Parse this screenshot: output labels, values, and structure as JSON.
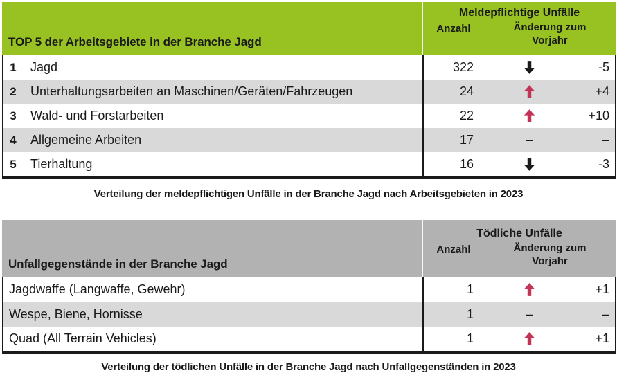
{
  "colors": {
    "header_green": "#98c222",
    "header_gray": "#b2b2b2",
    "row_alt_gray": "#d9d9d9",
    "trend_up_red": "#c23354",
    "trend_down_black": "#1a1a1a",
    "ink": "#1a1a1a"
  },
  "glyphs": {
    "no_change_dash": "–"
  },
  "table1": {
    "title": "TOP 5 der Arbeitsgebiete in der Branche Jagd",
    "group_header": "Meldepflichtige Unfälle",
    "col_anzahl": "Anzahl",
    "col_change": "Änderung zum Vorjahr",
    "rows": [
      {
        "rank": "1",
        "label": "Jagd",
        "anzahl": "322",
        "trend": "down",
        "change": "-5"
      },
      {
        "rank": "2",
        "label": "Unterhaltungsarbeiten an Maschinen/Geräten/Fahrzeugen",
        "anzahl": "24",
        "trend": "up",
        "change": "+4"
      },
      {
        "rank": "3",
        "label": "Wald- und Forstarbeiten",
        "anzahl": "22",
        "trend": "up",
        "change": "+10"
      },
      {
        "rank": "4",
        "label": "Allgemeine Arbeiten",
        "anzahl": "17",
        "trend": "none",
        "change": "–"
      },
      {
        "rank": "5",
        "label": "Tierhaltung",
        "anzahl": "16",
        "trend": "down",
        "change": "-3"
      }
    ],
    "caption": "Verteilung der meldepflichtigen Unfälle in der Branche Jagd nach Arbeitsgebieten in 2023"
  },
  "table2": {
    "title": "Unfallgegenstände in der Branche Jagd",
    "group_header": "Tödliche Unfälle",
    "col_anzahl": "Anzahl",
    "col_change": "Änderung zum Vorjahr",
    "rows": [
      {
        "label": "Jagdwaffe (Langwaffe, Gewehr)",
        "anzahl": "1",
        "trend": "up",
        "change": "+1"
      },
      {
        "label": "Wespe, Biene, Hornisse",
        "anzahl": "1",
        "trend": "none",
        "change": "–"
      },
      {
        "label": "Quad (All Terrain Vehicles)",
        "anzahl": "1",
        "trend": "up",
        "change": "+1"
      }
    ],
    "caption": "Verteilung der tödlichen Unfälle in der Branche Jagd nach Unfallgegenständen in 2023"
  }
}
